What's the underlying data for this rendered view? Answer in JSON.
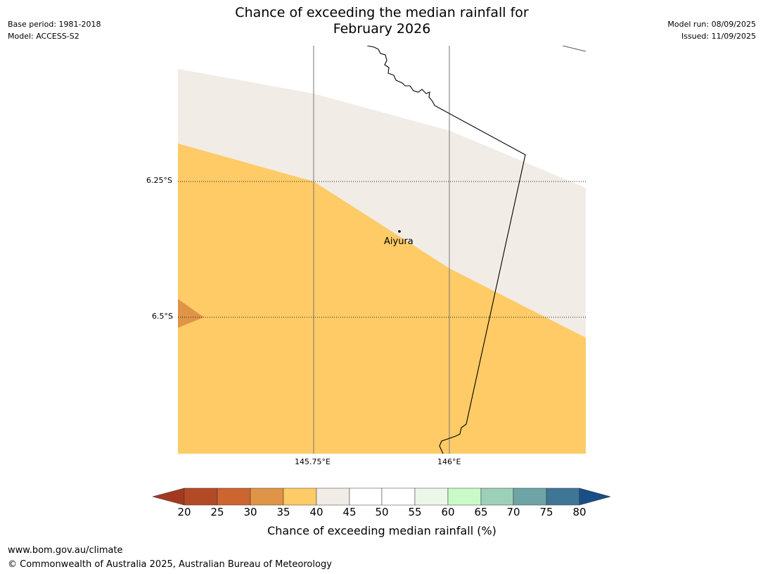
{
  "title_line1": "Chance of exceeding the median rainfall for",
  "title_line2": "February 2026",
  "meta_left": [
    "Base period: 1981-2018",
    "Model: ACCESS-S2"
  ],
  "meta_right": [
    "Model run: 08/09/2025",
    "Issued: 11/09/2025"
  ],
  "map": {
    "lat_labels": [
      "6.25°S",
      "6.5°S"
    ],
    "lon_labels": [
      "145.75°E",
      "146°E"
    ],
    "place": "Aiyura"
  },
  "colorbar": {
    "ticks": [
      "20",
      "25",
      "30",
      "35",
      "40",
      "45",
      "50",
      "55",
      "60",
      "65",
      "70",
      "75",
      "80"
    ],
    "colors": [
      "#a33a20",
      "#b34a26",
      "#cc6530",
      "#e09447",
      "#fecb67",
      "#f1ece6",
      "#ffffff",
      "#ffffff",
      "#ecf7ea",
      "#c9fac8",
      "#9dd0b8",
      "#6ea4a5",
      "#3f7696",
      "#174f86"
    ],
    "title": "Chance of exceeding median rainfall (%)"
  },
  "footer": {
    "url": "www.bom.gov.au/climate",
    "copyright": "© Commonwealth of Australia 2025, Australian Bureau of Meteorology"
  }
}
